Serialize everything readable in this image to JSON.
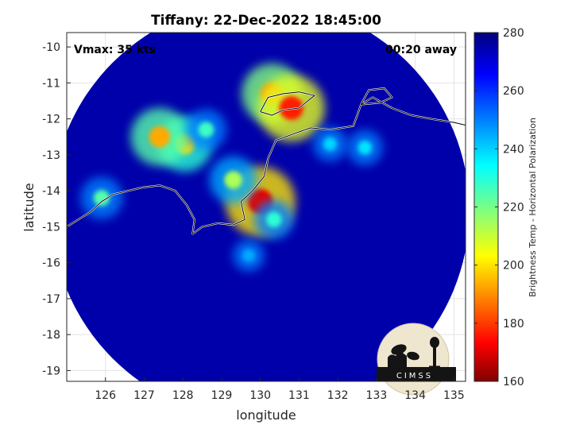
{
  "chart_data": {
    "type": "heatmap",
    "title": "Tiffany: 22-Dec-2022 18:45:00",
    "xlabel": "longitude",
    "ylabel": "latitude",
    "xlim": [
      125.0,
      135.3
    ],
    "ylim": [
      -19.3,
      -9.6
    ],
    "x_ticks": [
      126,
      127,
      128,
      129,
      130,
      131,
      132,
      133,
      134,
      135
    ],
    "y_ticks": [
      -10,
      -11,
      -12,
      -13,
      -14,
      -15,
      -16,
      -17,
      -18,
      -19
    ],
    "grid": true,
    "annotations": {
      "top_left": "Vmax: 35 kts",
      "top_right": "00:20 away"
    },
    "colorbar": {
      "label": "Brightness Temp - Horizontal Polarization",
      "range": [
        160,
        280
      ],
      "ticks": [
        160,
        180,
        200,
        220,
        240,
        260,
        280
      ],
      "colormap": "jet"
    },
    "swath": {
      "center": [
        130.0,
        -14.55
      ],
      "radius_deg": 5.4
    },
    "background_value": 275,
    "features": [
      {
        "lon": 130.0,
        "lat": -14.3,
        "value": 172
      },
      {
        "lon": 130.35,
        "lat": -14.8,
        "value": 230
      },
      {
        "lon": 130.3,
        "lat": -11.3,
        "value": 190
      },
      {
        "lon": 130.8,
        "lat": -11.7,
        "value": 178
      },
      {
        "lon": 128.05,
        "lat": -12.7,
        "value": 200
      },
      {
        "lon": 127.4,
        "lat": -12.5,
        "value": 195
      },
      {
        "lon": 128.6,
        "lat": -12.3,
        "value": 228
      },
      {
        "lon": 129.3,
        "lat": -13.7,
        "value": 215
      },
      {
        "lon": 125.9,
        "lat": -14.2,
        "value": 225
      },
      {
        "lon": 131.8,
        "lat": -12.7,
        "value": 240
      },
      {
        "lon": 132.7,
        "lat": -12.8,
        "value": 238
      },
      {
        "lon": 129.7,
        "lat": -15.8,
        "value": 245
      }
    ],
    "logo": "CIMSS"
  }
}
